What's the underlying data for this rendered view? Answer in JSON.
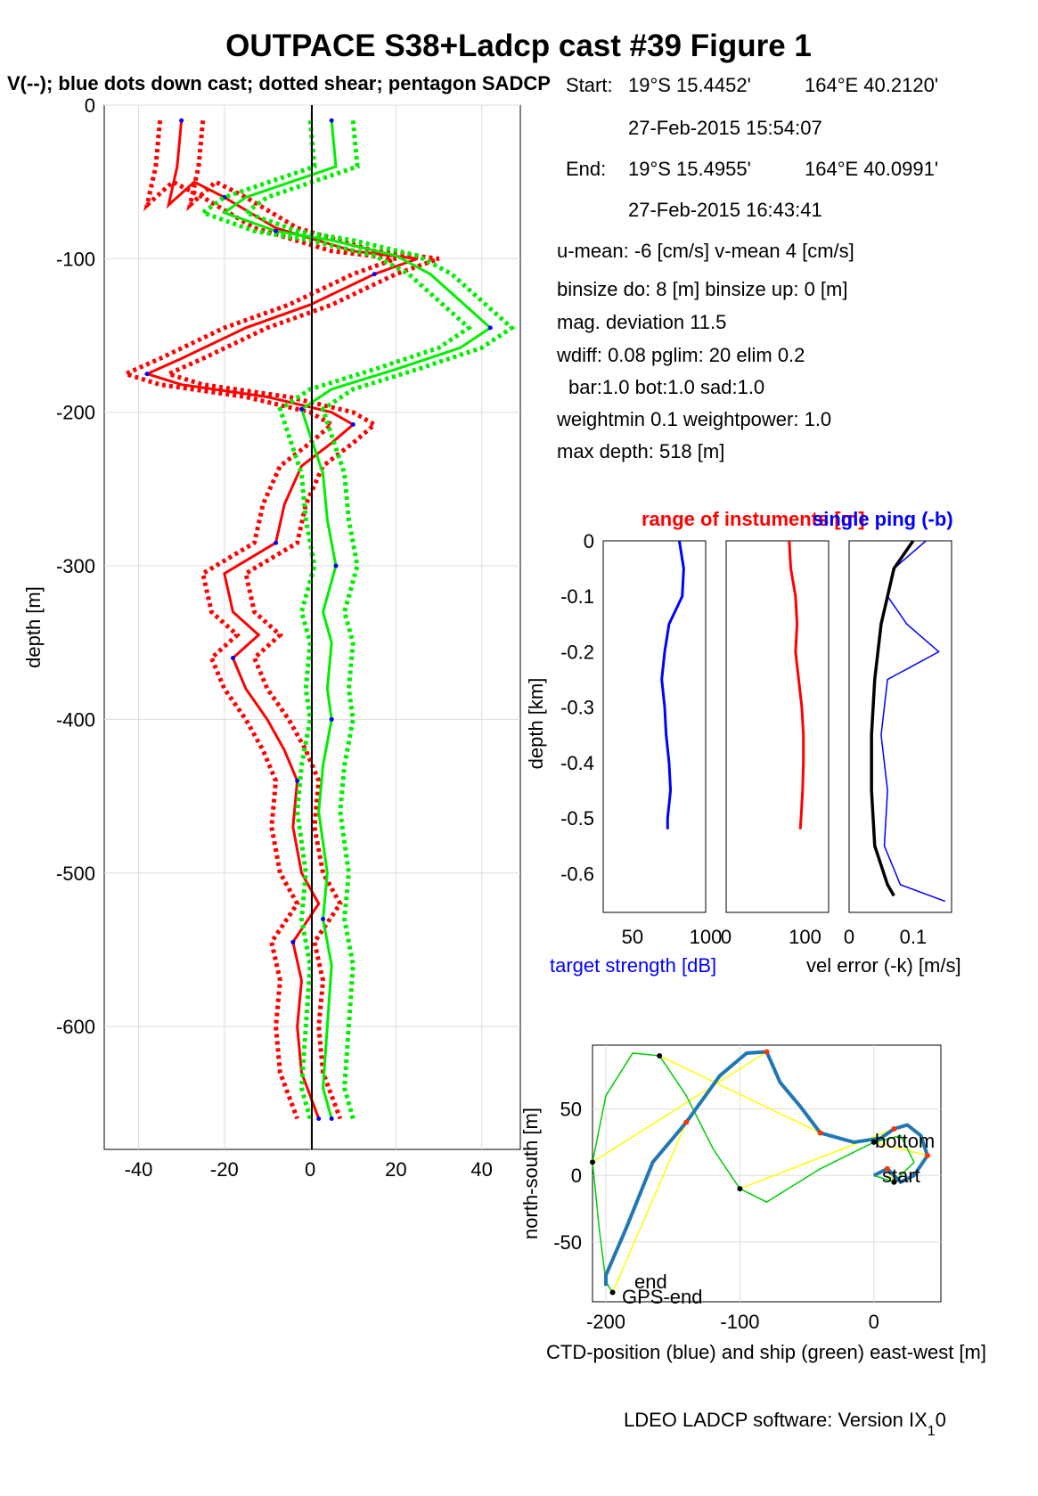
{
  "title": "OUTPACE S38+Ladcp cast #39  Figure 1",
  "subtitle": "V(--); blue dots down cast; dotted shear; pentagon SADCP",
  "info": {
    "start_label": "Start:",
    "start_lat": "19°S 15.4452'",
    "start_lon": "164°E 40.2120'",
    "start_time": "27-Feb-2015 15:54:07",
    "end_label": "End:",
    "end_lat": "19°S 15.4955'",
    "end_lon": "164°E 40.0991'",
    "end_time": "27-Feb-2015 16:43:41",
    "means": "u-mean:  -6 [cm/s]    v-mean   4 [cm/s]",
    "binsize": "binsize do: 8 [m]  binsize up:  0 [m]",
    "magdev": "mag. deviation 11.5",
    "wdiff": "wdiff: 0.08  pglim: 20  elim 0.2",
    "bar": "bar:1.0 bot:1.0 sad:1.0",
    "weight": "weightmin 0.1  weightpower: 1.0",
    "maxdepth": "max depth: 518 [m]"
  },
  "footer": "LDEO LADCP software: Version IX",
  "footer_sub": "1",
  "footer_end": "0",
  "colors": {
    "u": "#ff0000",
    "v": "#00ee00",
    "blue": "#0000ff",
    "track": "#1f77b4",
    "ship": "#00cc00",
    "link": "#ffff00"
  },
  "chart_data": [
    {
      "type": "line",
      "ylabel": "depth [m]",
      "xlim": [
        -48,
        49
      ],
      "ylim": [
        -680,
        0
      ],
      "x_ticks": [
        -40,
        -20,
        0,
        20,
        40
      ],
      "y_ticks": [
        0,
        -100,
        -200,
        -300,
        -400,
        -500,
        -600
      ],
      "grid": true,
      "series": [
        {
          "color": "#ff0000",
          "points": [
            [
              -30,
              -10
            ],
            [
              -31,
              -40
            ],
            [
              -33,
              -65
            ],
            [
              -27,
              -50
            ],
            [
              -20,
              -60
            ],
            [
              -8,
              -80
            ],
            [
              10,
              -95
            ],
            [
              25,
              -100
            ],
            [
              15,
              -110
            ],
            [
              0,
              -130
            ],
            [
              -15,
              -145
            ],
            [
              -30,
              -165
            ],
            [
              -38,
              -175
            ],
            [
              -30,
              -182
            ],
            [
              -10,
              -190
            ],
            [
              5,
              -200
            ],
            [
              10,
              -208
            ],
            [
              5,
              -220
            ],
            [
              -2,
              -235
            ],
            [
              -6,
              -260
            ],
            [
              -8,
              -285
            ],
            [
              -20,
              -305
            ],
            [
              -18,
              -330
            ],
            [
              -12,
              -345
            ],
            [
              -18,
              -360
            ],
            [
              -15,
              -380
            ],
            [
              -10,
              -400
            ],
            [
              -6,
              -420
            ],
            [
              -3,
              -440
            ],
            [
              -4,
              -470
            ],
            [
              -2,
              -500
            ],
            [
              2,
              -520
            ],
            [
              -4,
              -545
            ],
            [
              -2,
              -570
            ],
            [
              -3,
              -600
            ],
            [
              -2,
              -630
            ],
            [
              2,
              -660
            ]
          ]
        },
        {
          "color": "#00ee00",
          "points": [
            [
              5,
              -10
            ],
            [
              6,
              -40
            ],
            [
              -15,
              -60
            ],
            [
              -20,
              -70
            ],
            [
              -8,
              -82
            ],
            [
              5,
              -88
            ],
            [
              20,
              -98
            ],
            [
              28,
              -110
            ],
            [
              42,
              -145
            ],
            [
              35,
              -158
            ],
            [
              20,
              -172
            ],
            [
              5,
              -185
            ],
            [
              -2,
              -198
            ],
            [
              0,
              -215
            ],
            [
              3,
              -240
            ],
            [
              4,
              -270
            ],
            [
              6,
              -300
            ],
            [
              3,
              -330
            ],
            [
              5,
              -350
            ],
            [
              4,
              -380
            ],
            [
              5,
              -400
            ],
            [
              3,
              -430
            ],
            [
              2,
              -460
            ],
            [
              4,
              -500
            ],
            [
              3,
              -530
            ],
            [
              5,
              -560
            ],
            [
              4,
              -600
            ],
            [
              3,
              -640
            ],
            [
              5,
              -660
            ]
          ]
        }
      ]
    },
    {
      "type": "line",
      "title": "range of instuments [m]",
      "title2": "single ping (-b)",
      "ylabel": "depth [km]",
      "xlabel1": "target strength [dB]",
      "xlabel2": "vel error (-k) [m/s]",
      "ylim": [
        -0.67,
        0
      ],
      "y_ticks": [
        0,
        -0.1,
        -0.2,
        -0.3,
        -0.4,
        -0.5,
        -0.6
      ],
      "panel1_x_ticks": [
        "50",
        "100"
      ],
      "panel2_x_ticks": [
        "0",
        "100"
      ],
      "panel3_x_ticks": [
        "0",
        "0.1"
      ],
      "target_strength": [
        [
          82,
          0
        ],
        [
          85,
          -0.05
        ],
        [
          84,
          -0.1
        ],
        [
          75,
          -0.15
        ],
        [
          72,
          -0.2
        ],
        [
          70,
          -0.25
        ],
        [
          72,
          -0.3
        ],
        [
          73,
          -0.35
        ],
        [
          75,
          -0.4
        ],
        [
          76,
          -0.45
        ],
        [
          74,
          -0.5
        ],
        [
          74,
          -0.52
        ]
      ],
      "instrument_range": [
        [
          80,
          0
        ],
        [
          82,
          -0.05
        ],
        [
          88,
          -0.1
        ],
        [
          90,
          -0.15
        ],
        [
          88,
          -0.2
        ],
        [
          92,
          -0.25
        ],
        [
          96,
          -0.3
        ],
        [
          98,
          -0.35
        ],
        [
          98,
          -0.4
        ],
        [
          97,
          -0.45
        ],
        [
          95,
          -0.5
        ],
        [
          94,
          -0.52
        ]
      ],
      "vel_error_k": [
        [
          0.1,
          0
        ],
        [
          0.07,
          -0.05
        ],
        [
          0.06,
          -0.1
        ],
        [
          0.05,
          -0.15
        ],
        [
          0.04,
          -0.25
        ],
        [
          0.035,
          -0.35
        ],
        [
          0.035,
          -0.45
        ],
        [
          0.04,
          -0.55
        ],
        [
          0.06,
          -0.62
        ],
        [
          0.07,
          -0.64
        ]
      ],
      "vel_error_b": [
        [
          0.12,
          0
        ],
        [
          0.07,
          -0.05
        ],
        [
          0.06,
          -0.1
        ],
        [
          0.09,
          -0.15
        ],
        [
          0.14,
          -0.2
        ],
        [
          0.06,
          -0.25
        ],
        [
          0.05,
          -0.35
        ],
        [
          0.06,
          -0.45
        ],
        [
          0.055,
          -0.55
        ],
        [
          0.08,
          -0.62
        ],
        [
          0.15,
          -0.65
        ]
      ]
    },
    {
      "type": "line",
      "xlabel": "CTD-position (blue) and ship (green) east-west [m]",
      "ylabel": "north-south [m]",
      "xlim": [
        -210,
        50
      ],
      "ylim": [
        -95,
        98
      ],
      "x_ticks": [
        -200,
        -100,
        0
      ],
      "y_ticks": [
        50,
        0,
        -50
      ],
      "labels": [
        "bottom",
        "start",
        "end",
        "GPS-end"
      ],
      "ctd_track": [
        [
          0,
          0
        ],
        [
          10,
          5
        ],
        [
          20,
          -5
        ],
        [
          30,
          0
        ],
        [
          40,
          15
        ],
        [
          35,
          30
        ],
        [
          25,
          38
        ],
        [
          15,
          35
        ],
        [
          5,
          28
        ],
        [
          -15,
          25
        ],
        [
          -40,
          32
        ],
        [
          -55,
          52
        ],
        [
          -70,
          70
        ],
        [
          -80,
          93
        ],
        [
          -95,
          92
        ],
        [
          -115,
          75
        ],
        [
          -140,
          40
        ],
        [
          -165,
          10
        ],
        [
          -185,
          -40
        ],
        [
          -200,
          -75
        ],
        [
          -200,
          -83
        ]
      ],
      "ship_track": [
        [
          0,
          0
        ],
        [
          15,
          -5
        ],
        [
          30,
          10
        ],
        [
          20,
          30
        ],
        [
          0,
          25
        ],
        [
          -40,
          5
        ],
        [
          -80,
          -20
        ],
        [
          -100,
          -10
        ],
        [
          -120,
          20
        ],
        [
          -140,
          60
        ],
        [
          -160,
          90
        ],
        [
          -180,
          92
        ],
        [
          -200,
          60
        ],
        [
          -210,
          10
        ],
        [
          -205,
          -40
        ],
        [
          -200,
          -80
        ],
        [
          -195,
          -88
        ]
      ]
    }
  ]
}
